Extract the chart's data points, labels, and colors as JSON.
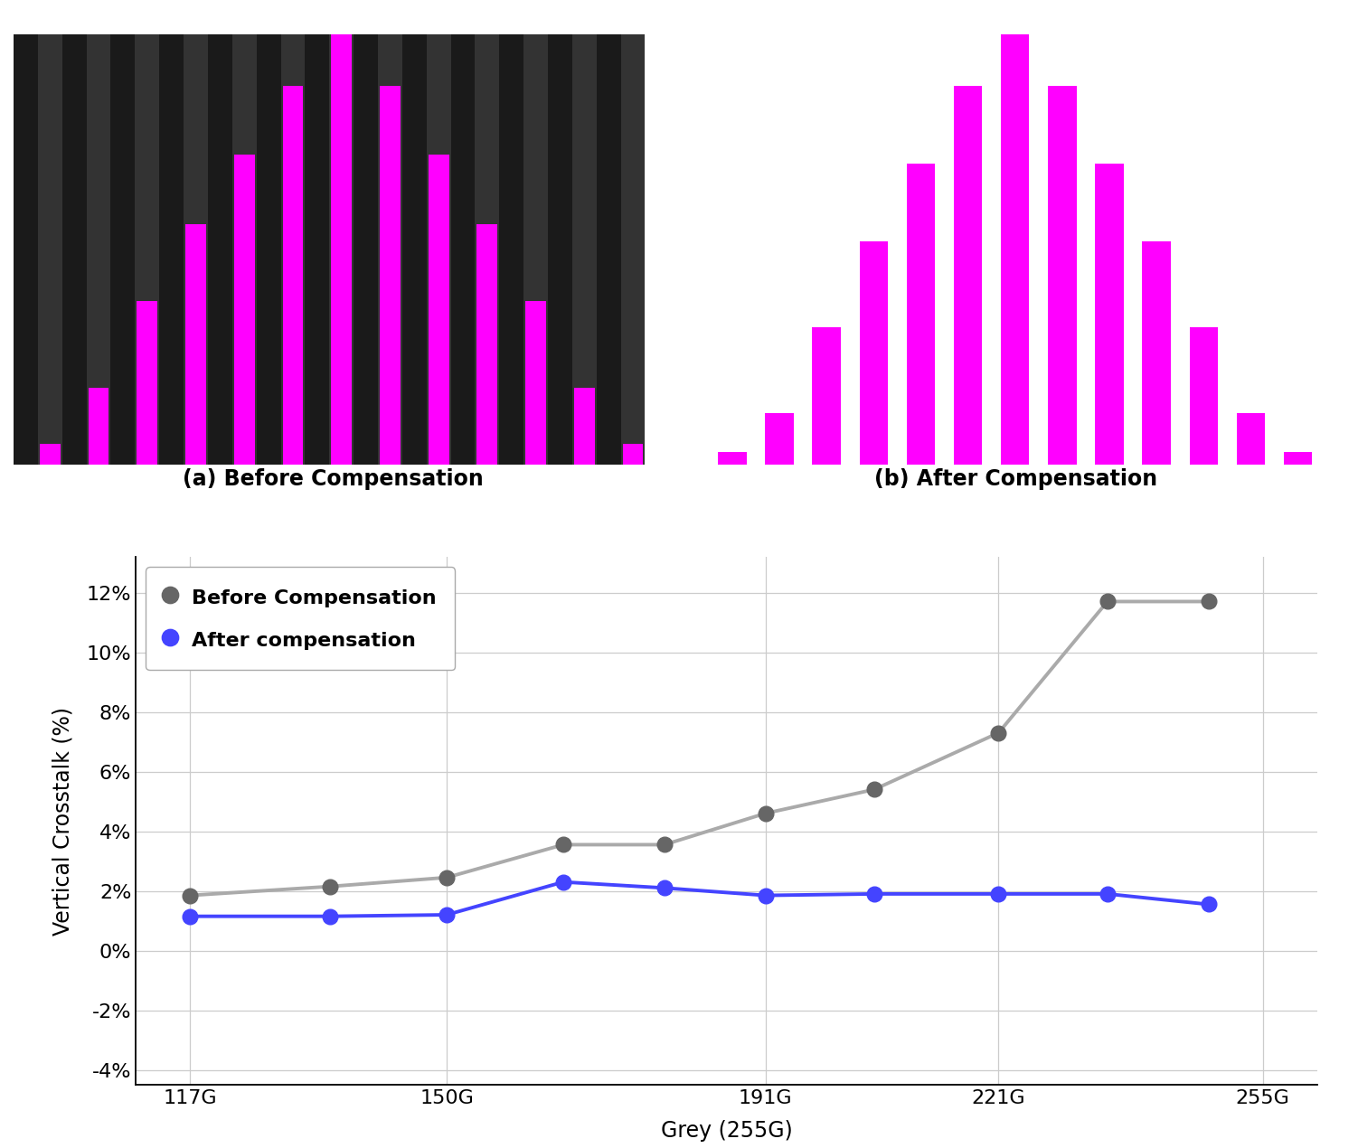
{
  "bar_color": "#FF00FF",
  "bg_color_left": "#000000",
  "bg_color_right": "#000000",
  "dark_stripe_color": "#1a1a1a",
  "light_stripe_color": "#333333",
  "label_a": "(a) Before Compensation",
  "label_b": "(b) After Compensation",
  "before_bars": [
    0.05,
    0.18,
    0.38,
    0.56,
    0.72,
    0.88,
    1.0,
    0.88,
    0.72,
    0.56,
    0.38,
    0.18,
    0.05
  ],
  "after_bars": [
    0.03,
    0.12,
    0.32,
    0.52,
    0.7,
    0.88,
    1.0,
    0.88,
    0.7,
    0.52,
    0.32,
    0.12,
    0.03
  ],
  "x_data": [
    117,
    135,
    150,
    165,
    178,
    191,
    205,
    221,
    235,
    248
  ],
  "before_y": [
    1.85,
    2.15,
    2.45,
    3.55,
    3.55,
    4.6,
    5.4,
    7.3,
    11.7,
    11.7
  ],
  "after_y": [
    1.15,
    1.15,
    1.2,
    2.3,
    2.1,
    1.85,
    1.9,
    1.9,
    1.9,
    1.55
  ],
  "x_ticks": [
    117,
    150,
    191,
    221,
    255
  ],
  "x_tick_labels": [
    "117G",
    "150G",
    "191G",
    "221G",
    "255G"
  ],
  "y_ticks": [
    -4,
    -2,
    0,
    2,
    4,
    6,
    8,
    10,
    12
  ],
  "y_tick_labels": [
    "-4%",
    "-2%",
    "0%",
    "2%",
    "4%",
    "6%",
    "8%",
    "10%",
    "12%"
  ],
  "ylabel": "Vertical Crosstalk (%)",
  "xlabel": "Grey (255G)",
  "legend_before": "Before Compensation",
  "legend_after": "After compensation",
  "before_line_color": "#aaaaaa",
  "before_marker_color": "#666666",
  "after_line_color": "#4444ff",
  "after_marker_color": "#4444ff",
  "ylim": [
    -4.5,
    13.2
  ],
  "xlim": [
    110,
    262
  ]
}
